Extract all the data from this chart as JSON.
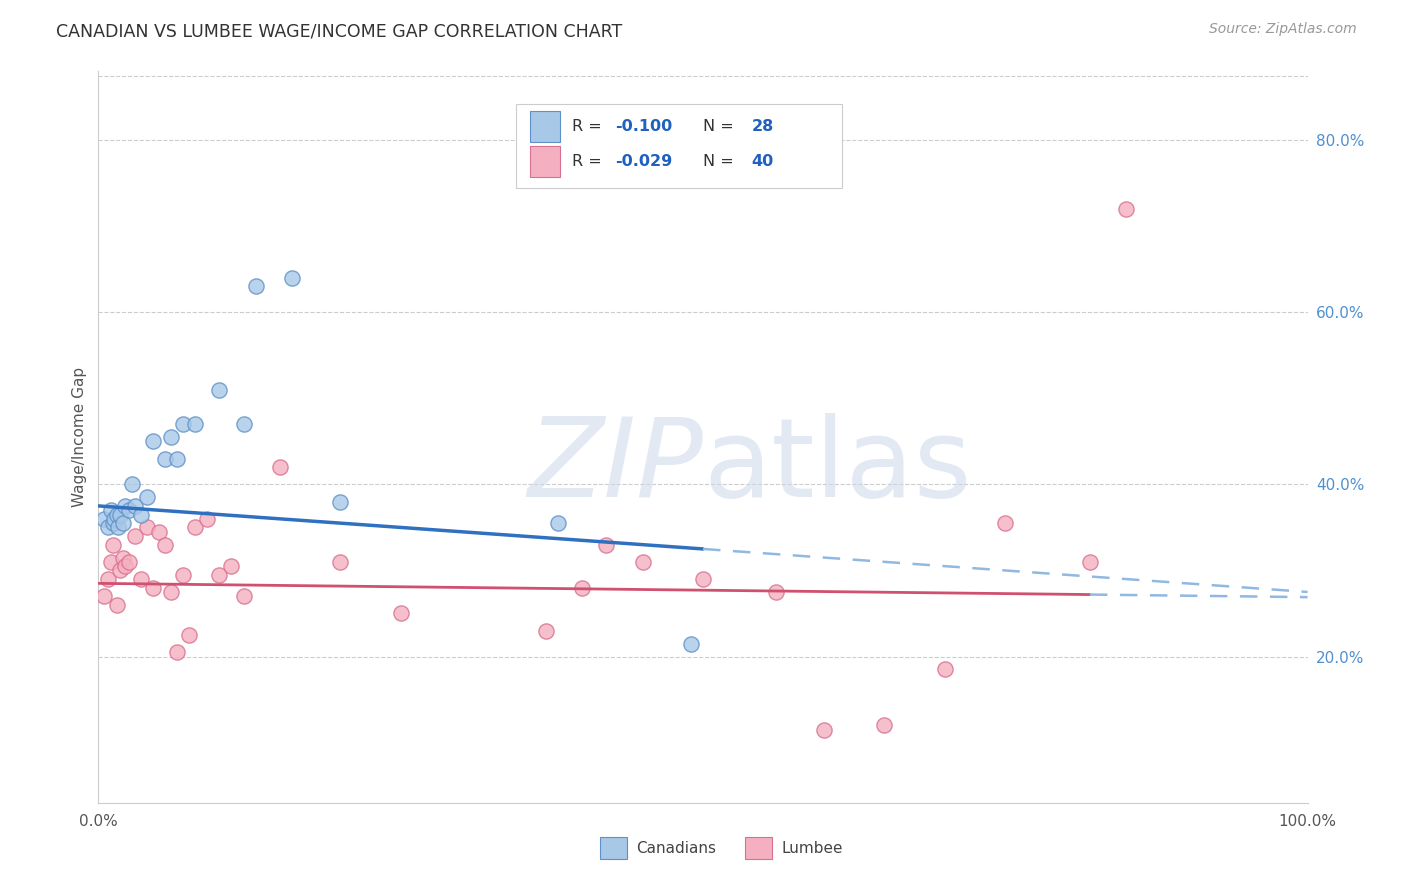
{
  "title": "CANADIAN VS LUMBEE WAGE/INCOME GAP CORRELATION CHART",
  "source": "Source: ZipAtlas.com",
  "ylabel": "Wage/Income Gap",
  "right_ytick_labels": [
    "20.0%",
    "40.0%",
    "60.0%",
    "80.0%"
  ],
  "right_yticks": [
    0.2,
    0.4,
    0.6,
    0.8
  ],
  "xmin": 0.0,
  "xmax": 1.0,
  "ymin": 0.03,
  "ymax": 0.88,
  "canadians_color": "#a8c8e8",
  "lumbee_color": "#f4b0c0",
  "canadians_edge": "#6090c8",
  "lumbee_edge": "#d87090",
  "trend_blue": "#3070c0",
  "trend_pink": "#d05070",
  "trend_dash_color": "#90b8e0",
  "legend_bottom_canadian": "Canadians",
  "legend_bottom_lumbee": "Lumbee",
  "canadians_x": [
    0.005,
    0.008,
    0.01,
    0.012,
    0.013,
    0.015,
    0.016,
    0.018,
    0.02,
    0.022,
    0.025,
    0.028,
    0.03,
    0.035,
    0.04,
    0.045,
    0.055,
    0.06,
    0.065,
    0.07,
    0.08,
    0.1,
    0.12,
    0.13,
    0.16,
    0.2,
    0.38,
    0.49
  ],
  "canadians_y": [
    0.36,
    0.35,
    0.37,
    0.355,
    0.36,
    0.365,
    0.35,
    0.365,
    0.355,
    0.375,
    0.37,
    0.4,
    0.375,
    0.365,
    0.385,
    0.45,
    0.43,
    0.455,
    0.43,
    0.47,
    0.47,
    0.51,
    0.47,
    0.63,
    0.64,
    0.38,
    0.355,
    0.215
  ],
  "lumbee_x": [
    0.005,
    0.008,
    0.01,
    0.012,
    0.013,
    0.015,
    0.018,
    0.02,
    0.022,
    0.025,
    0.03,
    0.035,
    0.04,
    0.045,
    0.05,
    0.055,
    0.06,
    0.065,
    0.07,
    0.075,
    0.08,
    0.09,
    0.1,
    0.11,
    0.12,
    0.15,
    0.2,
    0.25,
    0.37,
    0.4,
    0.42,
    0.45,
    0.5,
    0.56,
    0.6,
    0.65,
    0.7,
    0.75,
    0.82,
    0.85
  ],
  "lumbee_y": [
    0.27,
    0.29,
    0.31,
    0.33,
    0.355,
    0.26,
    0.3,
    0.315,
    0.305,
    0.31,
    0.34,
    0.29,
    0.35,
    0.28,
    0.345,
    0.33,
    0.275,
    0.205,
    0.295,
    0.225,
    0.35,
    0.36,
    0.295,
    0.305,
    0.27,
    0.42,
    0.31,
    0.25,
    0.23,
    0.28,
    0.33,
    0.31,
    0.29,
    0.275,
    0.115,
    0.12,
    0.185,
    0.355,
    0.31,
    0.72
  ],
  "marker_size": 120,
  "background_color": "#ffffff",
  "grid_color": "#cccccc",
  "watermark_color": "#ccd8e8",
  "watermark_alpha": 0.55,
  "can_trend_x0": 0.0,
  "can_trend_y0": 0.375,
  "can_trend_x1": 0.5,
  "can_trend_y1": 0.325,
  "can_trend_xe": 1.0,
  "can_trend_ye": 0.275,
  "lum_trend_x0": 0.0,
  "lum_trend_y0": 0.285,
  "lum_trend_x1": 0.82,
  "lum_trend_y1": 0.272,
  "lum_trend_xe": 1.0,
  "lum_trend_ye": 0.269
}
